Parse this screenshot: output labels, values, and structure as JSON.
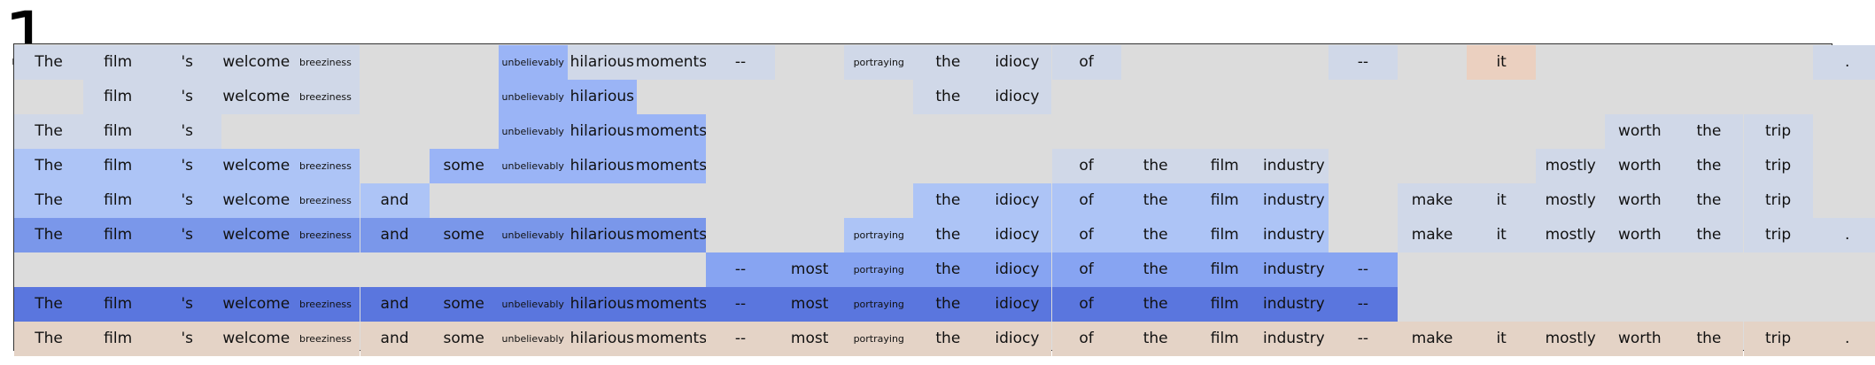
{
  "panel_label": "1",
  "tokens": [
    "The",
    "film",
    "'s",
    "welcome",
    "breeziness",
    "and",
    "some",
    "unbelievably",
    "hilarious",
    "moments",
    "--",
    "most",
    "portraying",
    "the",
    "idiocy",
    "of",
    "the",
    "film",
    "industry",
    "--",
    "make",
    "it",
    "mostly",
    "worth",
    "the",
    "trip",
    "."
  ],
  "small_tokens": [
    "breeziness",
    "unbelievably",
    "portraying"
  ],
  "colors": {
    "empty": "#dcdcdc",
    "c1": "#d0d8e8",
    "c2": "#adc4f6",
    "c3": "#9ab4f6",
    "c4": "#87a4f2",
    "c5": "#7a97ea",
    "c6": "#5a76de",
    "w1": "#e4d3c6",
    "w2": "#ebd0c0"
  },
  "rows": [
    [
      "c1",
      "c1",
      "c1",
      "c1",
      "c1",
      "empty",
      "empty",
      "c3",
      "c1",
      "c1",
      "c1",
      "empty",
      "c1",
      "c1",
      "c1",
      "c1",
      "empty",
      "empty",
      "empty",
      "c1",
      "empty",
      "w2",
      "empty",
      "empty",
      "empty",
      "empty",
      "c1"
    ],
    [
      "empty",
      "c1",
      "c1",
      "c1",
      "c1",
      "empty",
      "empty",
      "c3",
      "c3",
      "empty",
      "empty",
      "empty",
      "empty",
      "c1",
      "c1",
      "empty",
      "empty",
      "empty",
      "empty",
      "empty",
      "empty",
      "empty",
      "empty",
      "empty",
      "empty",
      "empty",
      "empty"
    ],
    [
      "c1",
      "c1",
      "c1",
      "empty",
      "empty",
      "empty",
      "empty",
      "c3",
      "c3",
      "c3",
      "empty",
      "empty",
      "empty",
      "empty",
      "empty",
      "empty",
      "empty",
      "empty",
      "empty",
      "empty",
      "empty",
      "empty",
      "empty",
      "c1",
      "c1",
      "c1",
      "empty"
    ],
    [
      "c2",
      "c2",
      "c2",
      "c2",
      "c2",
      "empty",
      "c3",
      "c3",
      "c3",
      "c3",
      "empty",
      "empty",
      "empty",
      "empty",
      "empty",
      "c1",
      "c1",
      "c1",
      "c1",
      "empty",
      "empty",
      "empty",
      "c1",
      "c1",
      "c1",
      "c1",
      "empty"
    ],
    [
      "c2",
      "c2",
      "c2",
      "c2",
      "c2",
      "c2",
      "empty",
      "empty",
      "empty",
      "empty",
      "empty",
      "empty",
      "empty",
      "c2",
      "c2",
      "c2",
      "c2",
      "c2",
      "c2",
      "empty",
      "c1",
      "c1",
      "c1",
      "c1",
      "c1",
      "c1",
      "empty"
    ],
    [
      "c5",
      "c5",
      "c5",
      "c5",
      "c5",
      "c5",
      "c5",
      "c5",
      "c5",
      "c5",
      "empty",
      "empty",
      "c2",
      "c2",
      "c2",
      "c2",
      "c2",
      "c2",
      "c2",
      "empty",
      "c1",
      "c1",
      "c1",
      "c1",
      "c1",
      "c1",
      "c1"
    ],
    [
      "empty",
      "empty",
      "empty",
      "empty",
      "empty",
      "empty",
      "empty",
      "empty",
      "empty",
      "empty",
      "c4",
      "c4",
      "c4",
      "c4",
      "c4",
      "c4",
      "c4",
      "c4",
      "c4",
      "c4",
      "empty",
      "empty",
      "empty",
      "empty",
      "empty",
      "empty",
      "empty"
    ],
    [
      "c6",
      "c6",
      "c6",
      "c6",
      "c6",
      "c6",
      "c6",
      "c6",
      "c6",
      "c6",
      "c6",
      "c6",
      "c6",
      "c6",
      "c6",
      "c6",
      "c6",
      "c6",
      "c6",
      "c6",
      "empty",
      "empty",
      "empty",
      "empty",
      "empty",
      "empty",
      "empty"
    ],
    [
      "w1",
      "w1",
      "w1",
      "w1",
      "w1",
      "w1",
      "w1",
      "w1",
      "w1",
      "w1",
      "w1",
      "w1",
      "w1",
      "w1",
      "w1",
      "w1",
      "w1",
      "w1",
      "w1",
      "w1",
      "w1",
      "w1",
      "w1",
      "w1",
      "w1",
      "w1",
      "w1"
    ]
  ]
}
